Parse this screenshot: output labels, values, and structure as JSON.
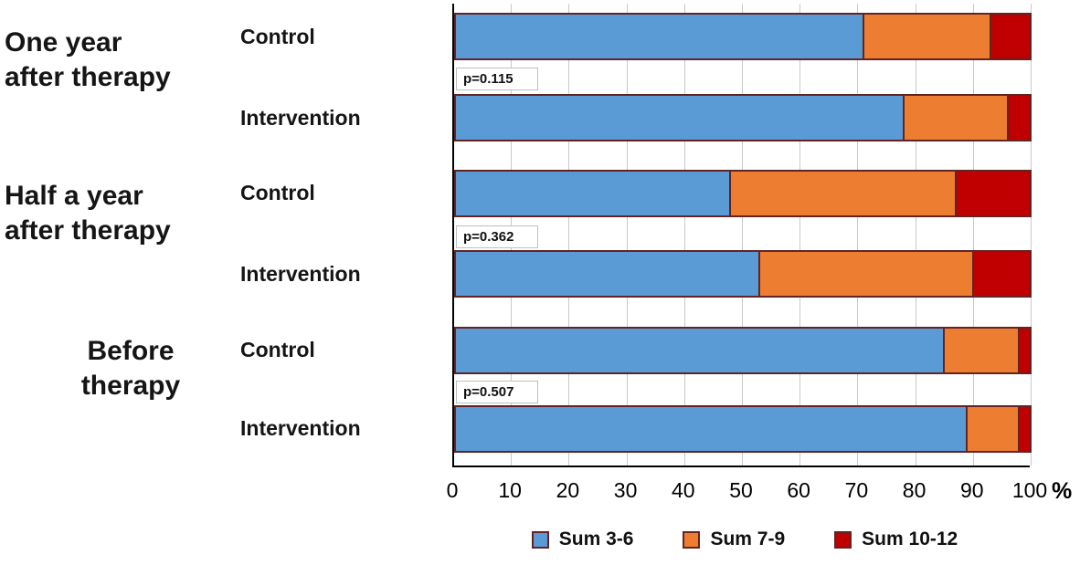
{
  "chart_data": {
    "type": "bar",
    "orientation": "horizontal",
    "stacked": true,
    "xlim": [
      0,
      100
    ],
    "x_ticks": [
      0,
      10,
      20,
      30,
      40,
      50,
      60,
      70,
      80,
      90,
      100
    ],
    "x_axis_suffix": "%",
    "grid": true,
    "legend_position": "bottom",
    "series": [
      {
        "name": "Sum 3-6",
        "color": "#5B9BD5"
      },
      {
        "name": "Sum 7-9",
        "color": "#ED7D31"
      },
      {
        "name": "Sum 10-12",
        "color": "#C00000"
      }
    ],
    "groups": [
      {
        "line1": "One year",
        "line2": "after therapy",
        "p_value": "p=0.115",
        "rows": [
          {
            "label": "Control",
            "values": [
              71,
              22,
              7
            ]
          },
          {
            "label": "Intervention",
            "values": [
              78,
              18,
              4
            ]
          }
        ]
      },
      {
        "line1": "Half a year",
        "line2": "after therapy",
        "p_value": "p=0.362",
        "rows": [
          {
            "label": "Control",
            "values": [
              48,
              39,
              13
            ]
          },
          {
            "label": "Intervention",
            "values": [
              53,
              37,
              10
            ]
          }
        ]
      },
      {
        "line1": "Before",
        "line2": "therapy",
        "p_value": "p=0.507",
        "rows": [
          {
            "label": "Control",
            "values": [
              85,
              13,
              2
            ]
          },
          {
            "label": "Intervention",
            "values": [
              89,
              9,
              2
            ]
          }
        ]
      }
    ],
    "colors": {
      "bar_border": "#622423",
      "gridline": "#c9c9c9",
      "axis": "#000000"
    }
  }
}
